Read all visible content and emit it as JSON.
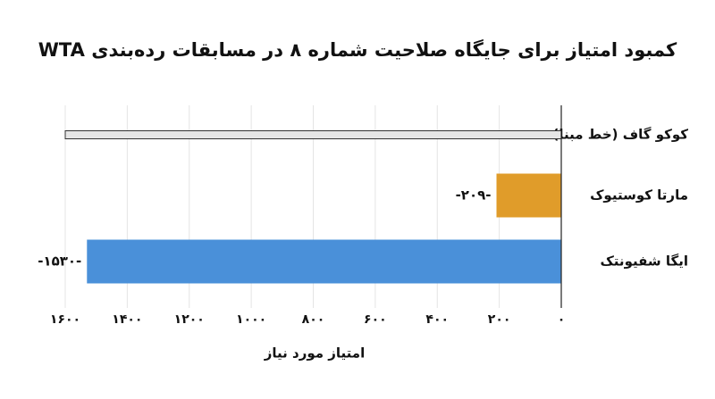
{
  "chart_data": {
    "type": "barh",
    "title": "کمبود امتیاز برای جایگاه صلاحیت شماره ۸ در مسابقات رده‌بندی WTA",
    "xlabel": "امتیاز مورد نیاز",
    "categories": [
      "کوکو گاف (خط مبنا)",
      "مارتا کوستیوک",
      "ایگا شفیونتک"
    ],
    "values": [
      null,
      209,
      1530
    ],
    "value_labels": [
      null,
      "-۲۰۹-",
      "-۱۵۳۰-"
    ],
    "colors": [
      "#e6e6e6",
      "#e09c2a",
      "#4a90d9"
    ],
    "xlim": [
      0,
      1600
    ],
    "x_reversed": true,
    "xticks": [
      {
        "value": 0,
        "label": "۰"
      },
      {
        "value": 200,
        "label": "۲۰۰"
      },
      {
        "value": 400,
        "label": "۴۰۰"
      },
      {
        "value": 600,
        "label": "۶۰۰"
      },
      {
        "value": 800,
        "label": "۸۰۰"
      },
      {
        "value": 1000,
        "label": "۱۰۰۰"
      },
      {
        "value": 1200,
        "label": "۱۲۰۰"
      },
      {
        "value": 1400,
        "label": "۱۴۰۰"
      },
      {
        "value": 1600,
        "label": "۱۶۰۰"
      }
    ],
    "grid": true
  }
}
